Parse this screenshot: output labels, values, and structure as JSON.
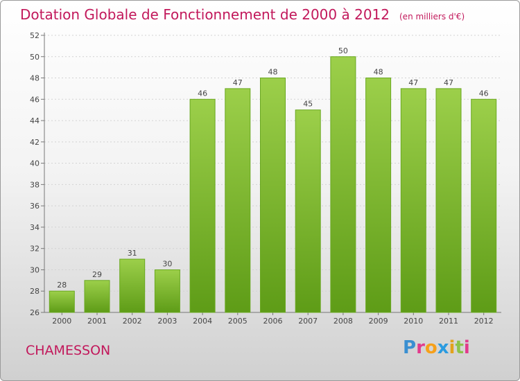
{
  "header": {
    "title": "Dotation Globale de Fonctionnement de 2000 à 2012",
    "subtitle": "(en milliers d'€)"
  },
  "footer": {
    "commune": "CHAMESSON",
    "logo": "Proxiti"
  },
  "colors": {
    "title": "#c2185b",
    "bar_top": "#9ccf4a",
    "bar_bottom": "#5e9c17",
    "logo_letters": [
      "#3a8fd1",
      "#e23a8c",
      "#f6a01a",
      "#2b9be0",
      "#e2a21b",
      "#8bc34a",
      "#e23a8c"
    ]
  },
  "chart_data": {
    "type": "bar",
    "categories": [
      "2000",
      "2001",
      "2002",
      "2003",
      "2004",
      "2005",
      "2006",
      "2007",
      "2008",
      "2009",
      "2010",
      "2011",
      "2012"
    ],
    "values": [
      28,
      29,
      31,
      30,
      46,
      47,
      48,
      45,
      50,
      48,
      47,
      47,
      46
    ],
    "yticks": [
      26,
      28,
      30,
      32,
      34,
      36,
      38,
      40,
      42,
      44,
      46,
      48,
      50,
      52
    ],
    "ylim": [
      26,
      52
    ],
    "grid": true,
    "xlabel": "",
    "ylabel": ""
  }
}
